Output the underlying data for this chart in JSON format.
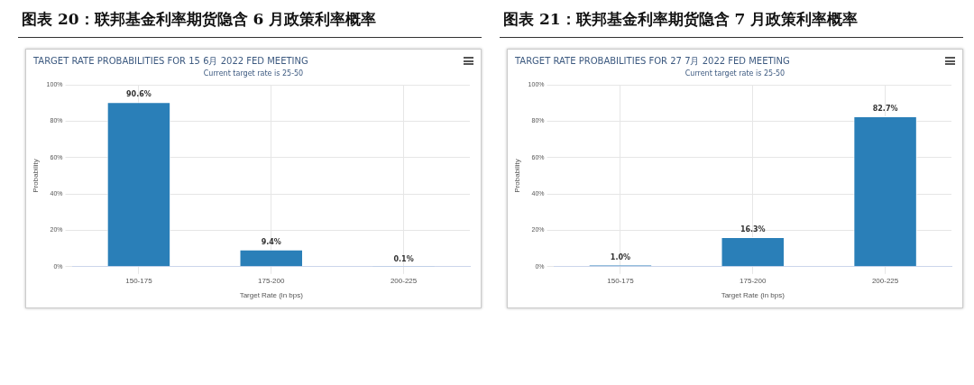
{
  "chart_data": [
    {
      "type": "bar",
      "title": "图表 20：联邦基金利率期货隐含 6 月政策利率概率",
      "subtitle": "TARGET RATE PROBABILITIES FOR 15 6月 2022 FED MEETING",
      "annotations": [
        "Current target rate is 25-50"
      ],
      "xlabel": "Target Rate (in bps)",
      "ylabel": "Probability",
      "categories": [
        "150-175",
        "175-200",
        "200-225"
      ],
      "values": [
        90.6,
        9.4,
        0.1
      ],
      "value_labels": [
        "90.6%",
        "9.4%",
        "0.1%"
      ],
      "color": "#2a7fb8",
      "ylim": [
        0,
        100
      ],
      "yticks": [
        {
          "value": 0,
          "label": "0%"
        },
        {
          "value": 20,
          "label": "20%"
        },
        {
          "value": 40,
          "label": "40%"
        },
        {
          "value": 60,
          "label": "60%"
        },
        {
          "value": 80,
          "label": "80%"
        },
        {
          "value": 100,
          "label": "100%"
        }
      ],
      "grid": true,
      "legend": false
    },
    {
      "type": "bar",
      "title": "图表 21：联邦基金利率期货隐含 7 月政策利率概率",
      "subtitle": "TARGET RATE PROBABILITIES FOR 27 7月 2022 FED MEETING",
      "annotations": [
        "Current target rate is 25-50"
      ],
      "xlabel": "Target Rate (in bps)",
      "ylabel": "Probability",
      "categories": [
        "150-175",
        "175-200",
        "200-225"
      ],
      "values": [
        1.0,
        16.3,
        82.7
      ],
      "value_labels": [
        "1.0%",
        "16.3%",
        "82.7%"
      ],
      "color": "#2a7fb8",
      "ylim": [
        0,
        100
      ],
      "yticks": [
        {
          "value": 0,
          "label": "0%"
        },
        {
          "value": 20,
          "label": "20%"
        },
        {
          "value": 40,
          "label": "40%"
        },
        {
          "value": 60,
          "label": "60%"
        },
        {
          "value": 80,
          "label": "80%"
        },
        {
          "value": 100,
          "label": "100%"
        }
      ],
      "grid": true,
      "legend": false
    }
  ]
}
